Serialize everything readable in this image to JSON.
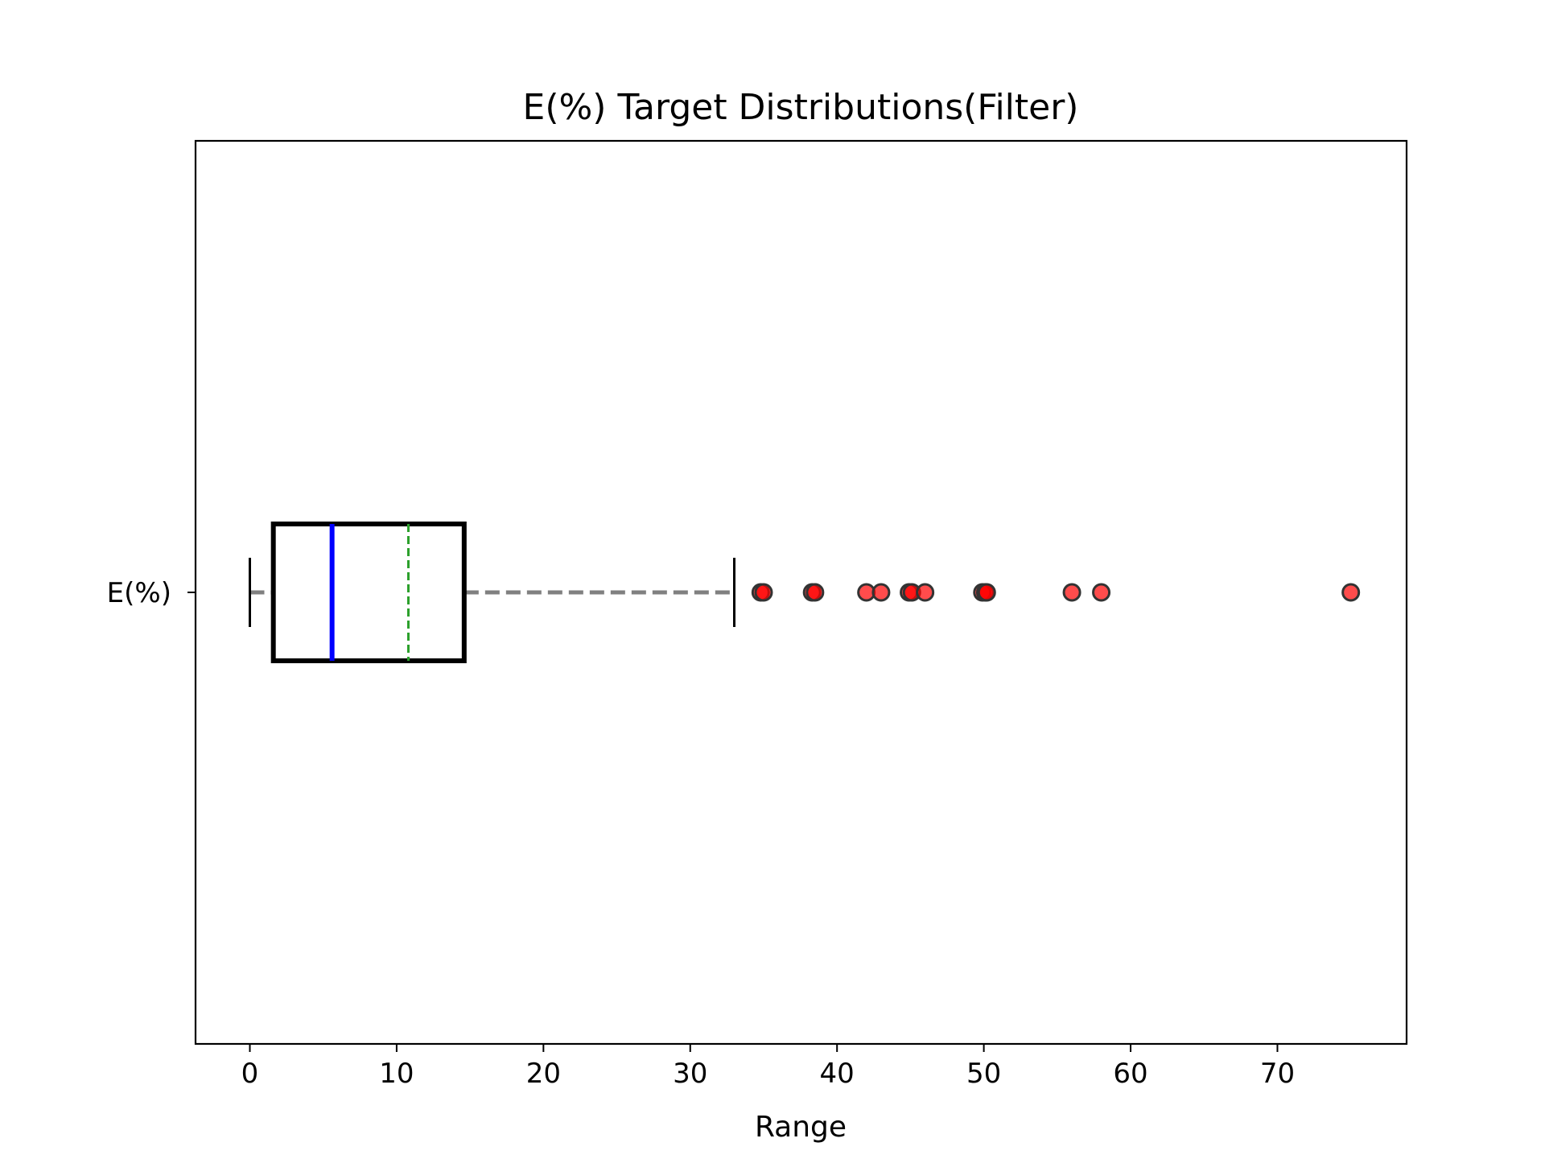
{
  "chart_data": {
    "type": "box",
    "orientation": "horizontal",
    "title": "E(%) Target Distributions(Filter)",
    "xlabel": "Range",
    "ylabel": "",
    "xlim": [
      -3.7,
      78.8
    ],
    "x_ticks": [
      0,
      10,
      20,
      30,
      40,
      50,
      60,
      70
    ],
    "categories": [
      "E(%)"
    ],
    "series": [
      {
        "category": "E(%)",
        "whisker_low": 0,
        "q1": 1.6,
        "median": 5.6,
        "mean": 10.8,
        "q3": 14.6,
        "whisker_high": 33,
        "outliers": [
          34.8,
          35.0,
          38.3,
          38.5,
          42.0,
          43.0,
          44.9,
          45.1,
          46.0,
          49.9,
          50.1,
          50.2,
          56.0,
          58.0,
          75.0
        ]
      }
    ],
    "grid": false,
    "legend": "none",
    "colors": {
      "box": "#000000",
      "median": "#0000ff",
      "mean": "#2ca02c",
      "whisker": "#808080",
      "cap": "#000000",
      "outlier_fill": "#ff0000",
      "outlier_edge": "#333333"
    }
  }
}
